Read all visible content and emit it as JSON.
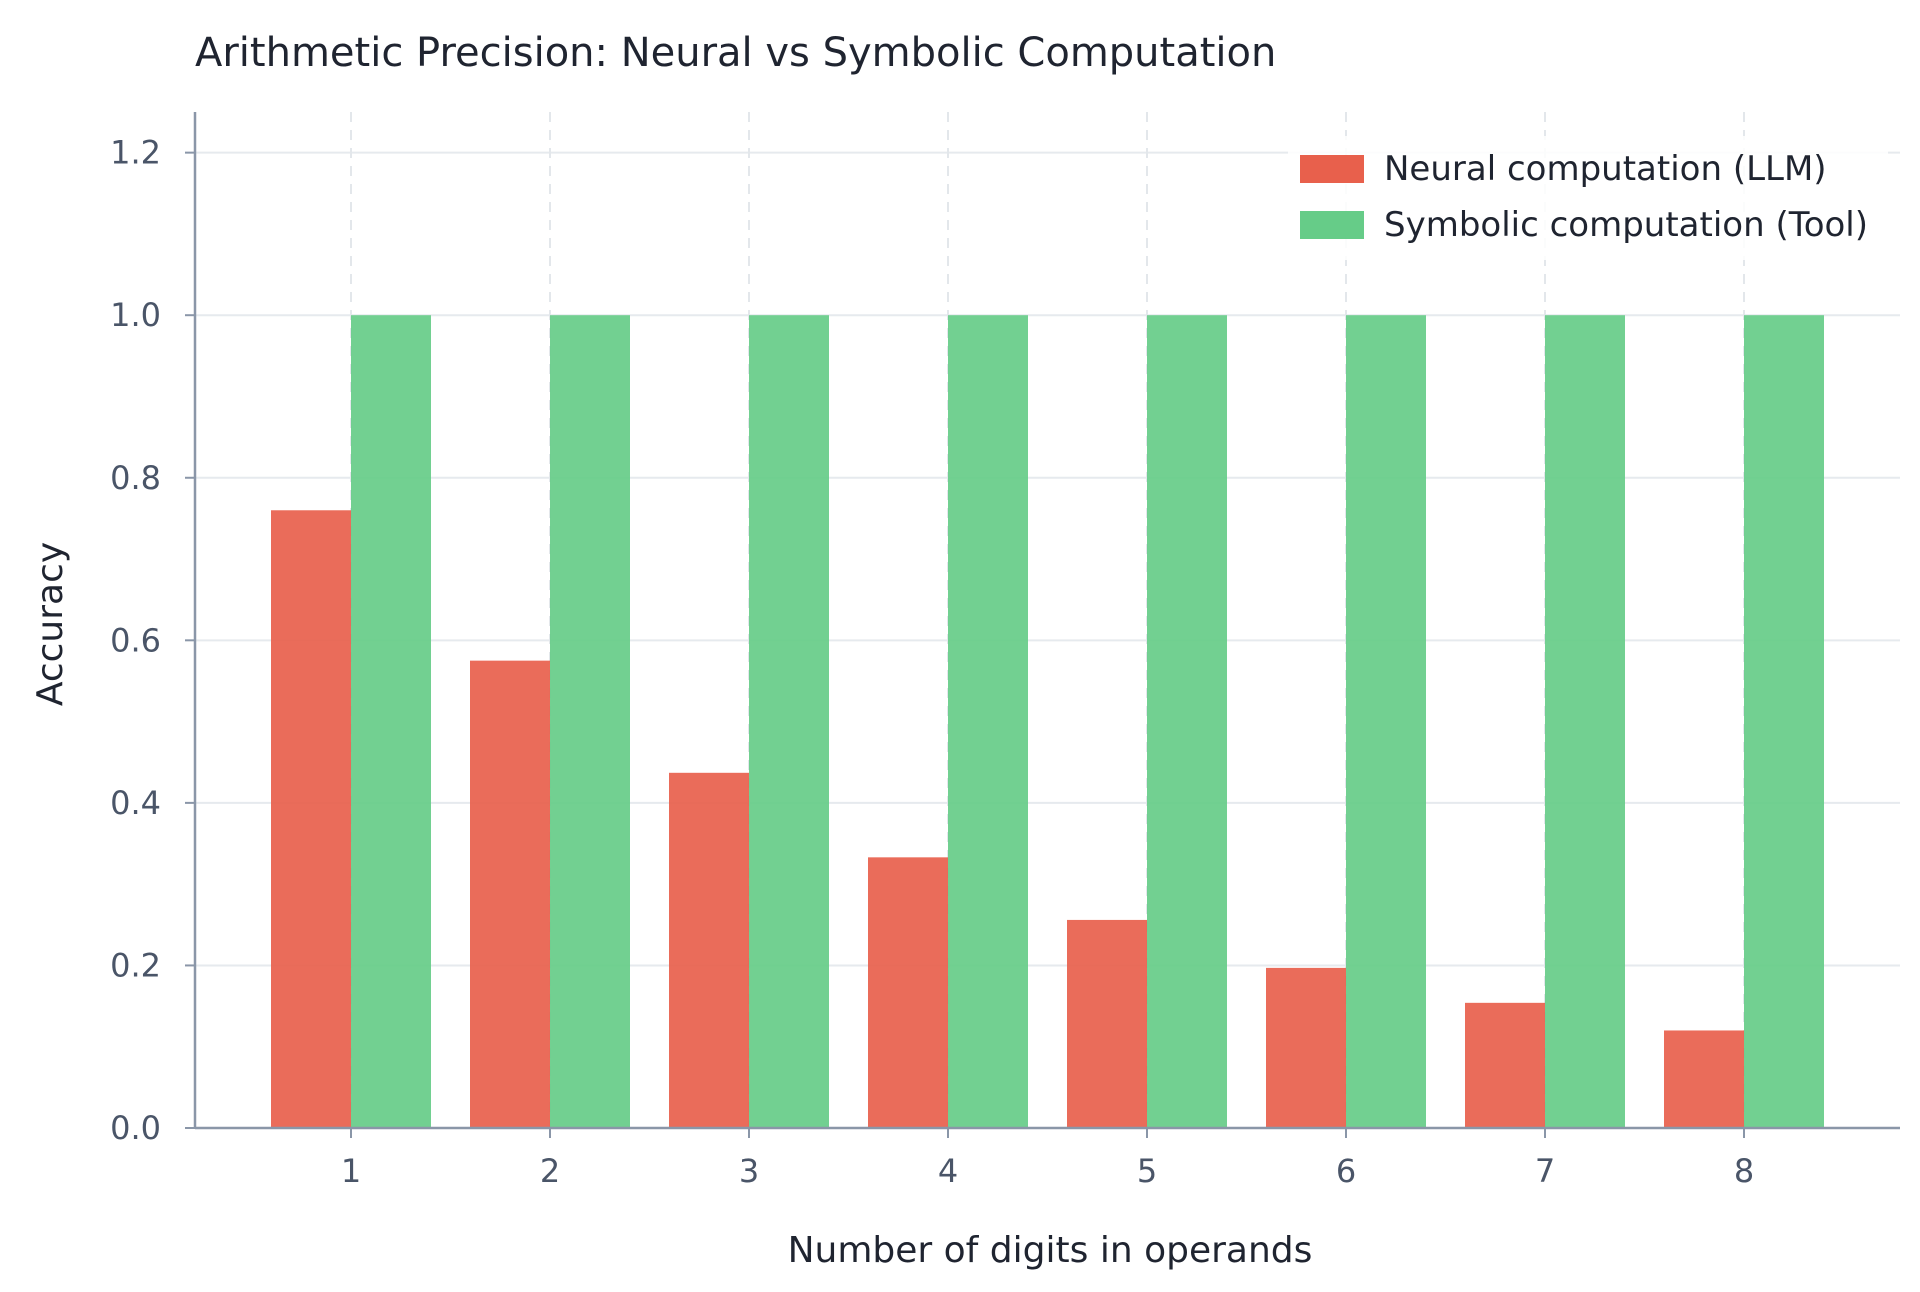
{
  "chart_data": {
    "type": "bar",
    "title": "Arithmetic Precision: Neural vs Symbolic Computation",
    "xlabel": "Number of digits in operands",
    "ylabel": "Accuracy",
    "categories": [
      "1",
      "2",
      "3",
      "4",
      "5",
      "6",
      "7",
      "8"
    ],
    "series": [
      {
        "name": "Neural computation (LLM)",
        "color": "#e8604c",
        "values": [
          0.76,
          0.575,
          0.437,
          0.333,
          0.256,
          0.197,
          0.154,
          0.12
        ]
      },
      {
        "name": "Symbolic computation (Tool)",
        "color": "#66cc88",
        "values": [
          1.0,
          1.0,
          1.0,
          1.0,
          1.0,
          1.0,
          1.0,
          1.0
        ]
      }
    ],
    "ylim": [
      0,
      1.25
    ],
    "yticks": [
      "0.0",
      "0.2",
      "0.4",
      "0.6",
      "0.8",
      "1.0",
      "1.2"
    ],
    "grid": true,
    "legend_position": "top-right"
  }
}
